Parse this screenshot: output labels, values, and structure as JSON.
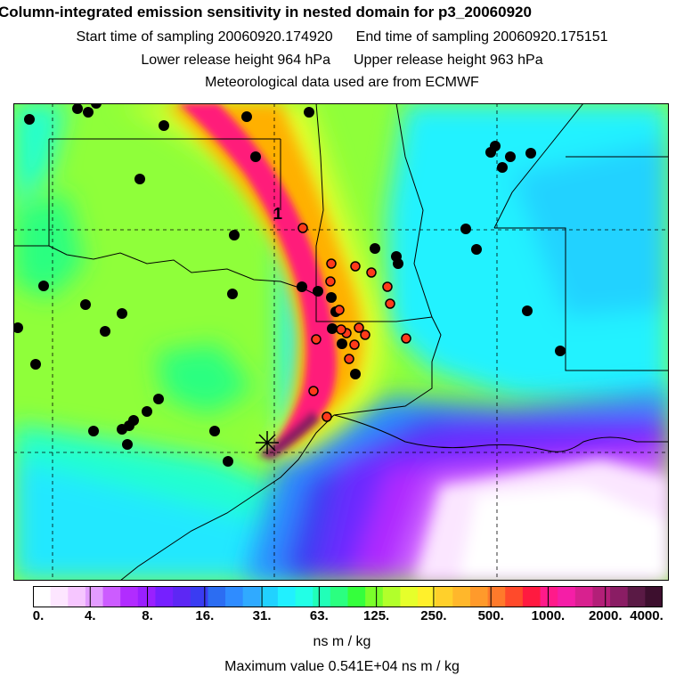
{
  "header": {
    "title": "Column-integrated emission sensitivity in nested domain for p3_20060920",
    "start_label": "Start time of sampling 20060920.174920",
    "end_label": "End time of sampling 20060920.175151",
    "lower_label": "Lower release height  964 hPa",
    "upper_label": "Upper release height  963 hPa",
    "met_label": "Meteorological data used are from ECMWF"
  },
  "map": {
    "marker_label": "1",
    "colors": {
      "background": "#8fff3a",
      "plume_yellow": "#f4ff2a",
      "plume_orange": "#ffb000",
      "plume_core": "#ff1f7a",
      "sea_cyan": "#21f2ff",
      "sea_blue": "#2c8dff",
      "deep_purple": "#6a2cff",
      "magenta": "#c44dff",
      "white": "#ffffff",
      "dots": "#000000",
      "highlight_dots": "#ff3a1a"
    }
  },
  "colorbar": {
    "colors": [
      "#ffffff",
      "#fde6ff",
      "#f6c6ff",
      "#e39cff",
      "#cc5cff",
      "#b12cff",
      "#9a20ff",
      "#7620ff",
      "#5d27f4",
      "#3a3cf2",
      "#2c6df2",
      "#2f8cff",
      "#30aaff",
      "#21d2ff",
      "#21f0ff",
      "#22ffe6",
      "#21ffb8",
      "#2bff80",
      "#35ff3c",
      "#7aff2b",
      "#b2ff2b",
      "#e6ff2b",
      "#fff02b",
      "#ffd02b",
      "#ffb72b",
      "#ff9a2b",
      "#ff7a2b",
      "#ff4a2b",
      "#ff1a40",
      "#ff1a8a",
      "#f51ea7",
      "#d8218f",
      "#b31f78",
      "#8a1d64",
      "#5a1a45",
      "#3d0f2e"
    ],
    "ticks": [
      "0.",
      "4.",
      "8.",
      "16.",
      "31.",
      "63.",
      "125.",
      "250.",
      "500.",
      "1000.",
      "2000.",
      "4000."
    ],
    "units": "ns m / kg",
    "max_value": "Maximum value  0.541E+04 ns m / kg"
  }
}
